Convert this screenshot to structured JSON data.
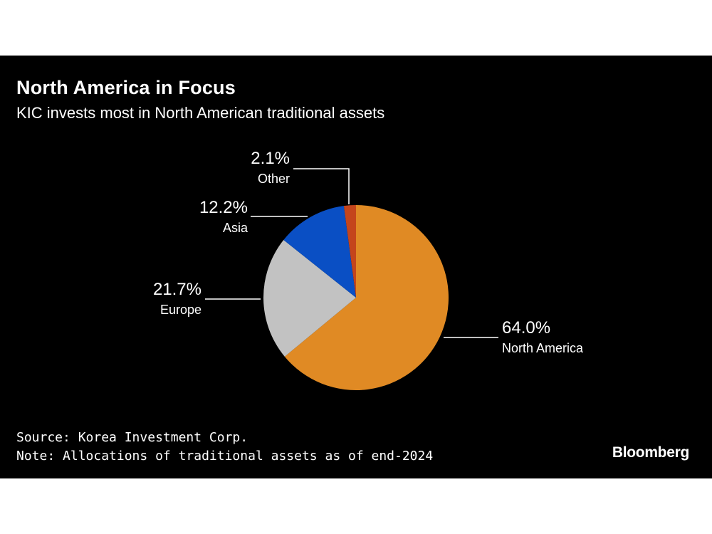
{
  "header": {
    "title": "North America in Focus",
    "subtitle": "KIC invests most in North American traditional assets"
  },
  "footer": {
    "source": "Source: Korea Investment Corp.",
    "note": "Note: Allocations of traditional assets as of end-2024",
    "logo": "Bloomberg"
  },
  "chart_data": {
    "type": "pie",
    "title": "North America in Focus",
    "subtitle": "KIC invests most in North American traditional assets",
    "slices": [
      {
        "label": "North America",
        "value": 64.0,
        "display": "64.0%",
        "color": "#E08A24"
      },
      {
        "label": "Europe",
        "value": 21.7,
        "display": "21.7%",
        "color": "#C2C2C2"
      },
      {
        "label": "Asia",
        "value": 12.2,
        "display": "12.2%",
        "color": "#0A4FC4"
      },
      {
        "label": "Other",
        "value": 2.1,
        "display": "2.1%",
        "color": "#C4451C"
      }
    ],
    "start_angle": "12 o'clock",
    "direction": "clockwise",
    "unit": "%"
  }
}
